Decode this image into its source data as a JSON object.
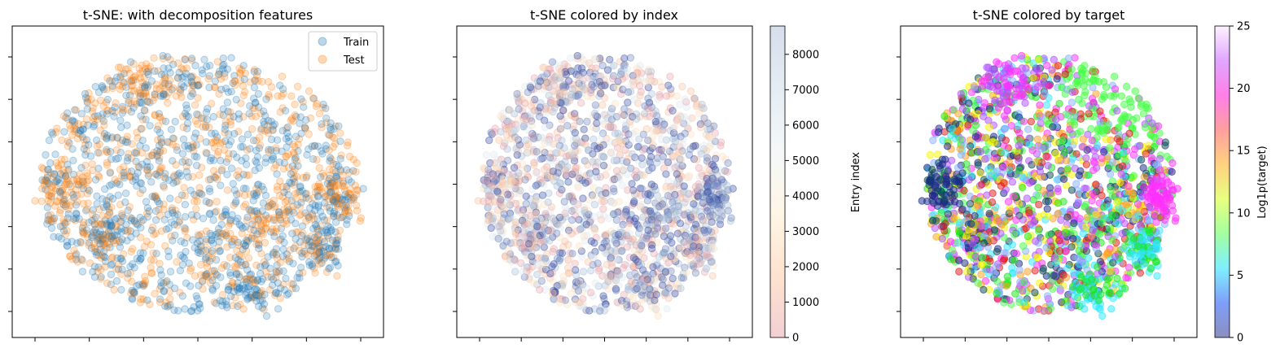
{
  "chart_data": [
    {
      "type": "scatter",
      "title": "t-SNE: with decomposition features",
      "xlabel": "",
      "ylabel": "",
      "tick_labels_visible": false,
      "legend": {
        "placement": "top-right",
        "entries": [
          "Train",
          "Test"
        ]
      },
      "series": [
        {
          "name": "Train",
          "color": "#1f77b4",
          "alpha": 0.25
        },
        {
          "name": "Test",
          "color": "#ff7f0e",
          "alpha": 0.25
        }
      ],
      "clusters": [
        {
          "series": "Test",
          "label": "dense right blob"
        },
        {
          "series": "Test",
          "label": "top-left blob"
        },
        {
          "series": "Train",
          "label": "left blob"
        },
        {
          "series": "Train",
          "label": "bottom blob"
        }
      ]
    },
    {
      "type": "scatter",
      "title": "t-SNE colored by index",
      "xlabel": "",
      "ylabel": "",
      "tick_labels_visible": false,
      "colormap": "RdYlBu (light, alpha)",
      "colorbar": {
        "label": "Entry index",
        "range": [
          0,
          8800
        ],
        "ticks": [
          0,
          1000,
          2000,
          3000,
          4000,
          5000,
          6000,
          7000,
          8000
        ],
        "stops": [
          "#f3cfd4",
          "#fde3cf",
          "#fff6e6",
          "#f4f8f8",
          "#e4ecf4",
          "#d7deec"
        ]
      }
    },
    {
      "type": "scatter",
      "title": "t-SNE colored by target",
      "xlabel": "",
      "ylabel": "",
      "tick_labels_visible": false,
      "colormap": "gist_ncar (alpha)",
      "colorbar": {
        "label": "Log1p(target)",
        "range": [
          0,
          25
        ],
        "ticks": [
          0,
          5,
          10,
          15,
          20,
          25
        ],
        "stops": [
          "#8a8fbf",
          "#7f9ef9",
          "#7fefff",
          "#a2ff9f",
          "#e8ff7f",
          "#ffd17f",
          "#ff9f9f",
          "#ff7fe8",
          "#e0a6ff",
          "#fdf2ff"
        ]
      }
    }
  ]
}
